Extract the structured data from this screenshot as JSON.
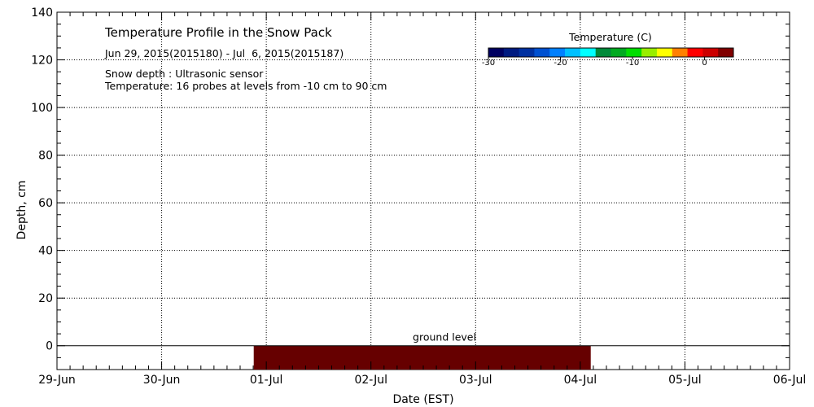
{
  "chart_data": {
    "type": "heatmap",
    "title": "Temperature Profile in the Snow Pack",
    "date_range": "Jun 29, 2015(2015180) - Jul  6, 2015(2015187)",
    "notes": [
      "Snow depth : Ultrasonic sensor",
      "Temperature: 16 probes at levels from -10 cm to 90 cm"
    ],
    "xlabel": "Date (EST)",
    "ylabel": "Depth, cm",
    "x_categories": [
      "29-Jun",
      "30-Jun",
      "01-Jul",
      "02-Jul",
      "03-Jul",
      "04-Jul",
      "05-Jul",
      "06-Jul"
    ],
    "xlim": [
      0,
      7
    ],
    "ylim": [
      -10,
      140
    ],
    "y_ticks": [
      0,
      20,
      40,
      60,
      80,
      100,
      120,
      140
    ],
    "grid": true,
    "ground_level": {
      "depth": 0,
      "label": "ground level"
    },
    "heat_block": {
      "x_start": 1.88,
      "x_end": 5.1,
      "depth_top": 0,
      "depth_bottom": -10,
      "color": "#660000"
    },
    "colorbar": {
      "title": "Temperature (C)",
      "range": [
        -30,
        4
      ],
      "ticks": [
        -30,
        -20,
        -10,
        0
      ],
      "colors": [
        "#000060",
        "#001a80",
        "#0030a0",
        "#0050d0",
        "#0080ff",
        "#00c0ff",
        "#00ffff",
        "#008a3a",
        "#00aa20",
        "#00dd00",
        "#99ee00",
        "#ffff00",
        "#ff8000",
        "#ff0000",
        "#cc0000",
        "#800000"
      ]
    }
  }
}
